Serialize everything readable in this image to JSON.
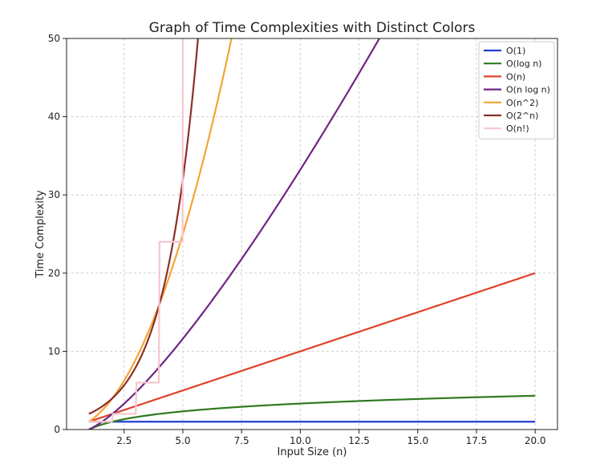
{
  "chart_data": {
    "type": "line",
    "title": "Graph of Time Complexities with Distinct Colors",
    "xlabel": "Input Size (n)",
    "ylabel": "Time Complexity",
    "xlim": [
      0.05,
      20.95
    ],
    "ylim": [
      0,
      50
    ],
    "xticks": [
      2.5,
      5.0,
      7.5,
      10.0,
      12.5,
      15.0,
      17.5,
      20.0
    ],
    "xtick_labels": [
      "2.5",
      "5.0",
      "7.5",
      "10.0",
      "12.5",
      "15.0",
      "17.5",
      "20.0"
    ],
    "yticks": [
      0,
      10,
      20,
      30,
      40,
      50
    ],
    "ytick_labels": [
      "0",
      "10",
      "20",
      "30",
      "40",
      "50"
    ],
    "grid": true,
    "legend_position": "top-right",
    "x_range": [
      1,
      20
    ],
    "series": [
      {
        "name": "O(1)",
        "function": "constant",
        "color": "#1f3fd1"
      },
      {
        "name": "O(log n)",
        "function": "log",
        "color": "#2f7a20"
      },
      {
        "name": "O(n)",
        "function": "linear",
        "color": "#e0412e"
      },
      {
        "name": "O(n log n)",
        "function": "nlogn",
        "color": "#6e2585"
      },
      {
        "name": "O(n^2)",
        "function": "quadratic",
        "color": "#f2a531"
      },
      {
        "name": "O(2^n)",
        "function": "exponential",
        "color": "#8b2f2a"
      },
      {
        "name": "O(n!)",
        "function": "factorial",
        "color": "#f7c6cc"
      }
    ]
  }
}
